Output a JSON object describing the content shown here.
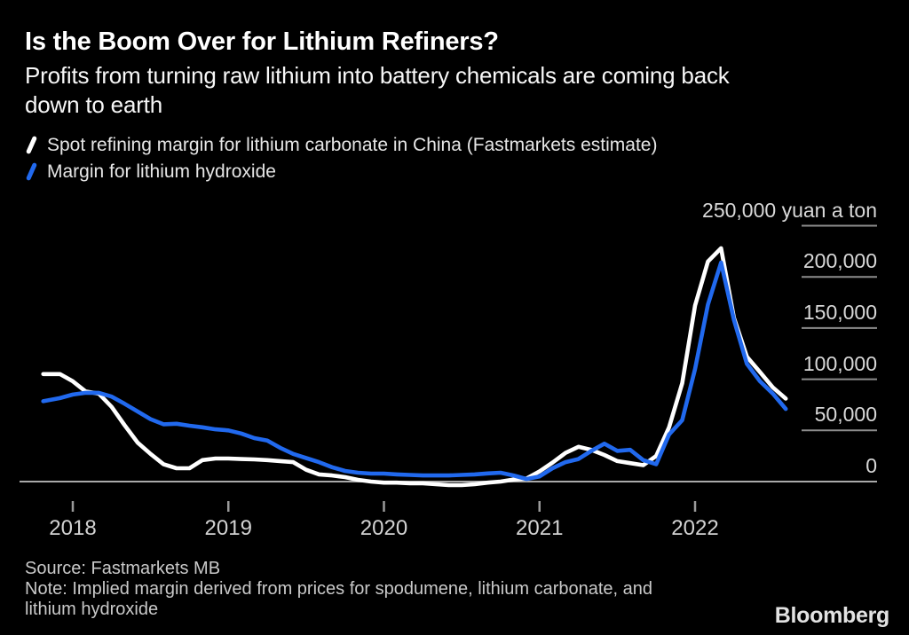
{
  "header": {
    "title": "Is the Boom Over for Lithium Refiners?",
    "subtitle_lines": [
      "Profits from turning raw lithium into battery chemicals are coming back",
      "down to earth"
    ]
  },
  "legend": {
    "items": [
      {
        "key": "carbonate",
        "label": "Spot refining margin for lithium carbonate in China (Fastmarkets estimate)",
        "color": "#ffffff"
      },
      {
        "key": "hydroxide",
        "label": "Margin for lithium hydroxide",
        "color": "#2169ee"
      }
    ]
  },
  "footer": {
    "source": "Source: Fastmarkets MB",
    "note_lines": [
      "Note: Implied margin derived from prices for spodumene, lithium carbonate, and",
      "lithium hydroxide"
    ],
    "brand": "Bloomberg"
  },
  "colors": {
    "background": "#000000",
    "carbonate_line": "#ffffff",
    "hydroxide_line": "#2169ee",
    "gridline": "#8d8d8d",
    "baseline": "#a9a9a9",
    "tick": "#9a9a9a"
  },
  "chart_data": {
    "type": "line",
    "title": "Is the Boom Over for Lithium Refiners?",
    "xlabel": "",
    "ylabel": "yuan a ton",
    "unit_note": "values in yuan per ton; x encoded as decimal years (monthly points)",
    "legend_position": "top-left",
    "grid": "right-side short rules per y tick; full-width rule at zero only",
    "xlim": [
      2017.75,
      2022.72
    ],
    "ylim": [
      -15000,
      265000
    ],
    "x_ticks": [
      {
        "value": 2018,
        "label": "2018"
      },
      {
        "value": 2019,
        "label": "2019"
      },
      {
        "value": 2020,
        "label": "2020"
      },
      {
        "value": 2021,
        "label": "2021"
      },
      {
        "value": 2022,
        "label": "2022"
      }
    ],
    "y_ticks": [
      {
        "value": 0,
        "label": "0"
      },
      {
        "value": 50000,
        "label": "50,000"
      },
      {
        "value": 100000,
        "label": "100,000"
      },
      {
        "value": 150000,
        "label": "150,000"
      },
      {
        "value": 200000,
        "label": "200,000"
      },
      {
        "value": 250000,
        "label": "250,000 yuan a ton"
      }
    ],
    "series": [
      {
        "key": "carbonate",
        "name": "Spot refining margin for lithium carbonate in China (Fastmarkets estimate)",
        "color": "#ffffff",
        "points": [
          [
            2017.81,
            105000
          ],
          [
            2017.917,
            105000
          ],
          [
            2018.0,
            98000
          ],
          [
            2018.083,
            88000
          ],
          [
            2018.167,
            86000
          ],
          [
            2018.25,
            73000
          ],
          [
            2018.333,
            55000
          ],
          [
            2018.417,
            38000
          ],
          [
            2018.5,
            27000
          ],
          [
            2018.583,
            17000
          ],
          [
            2018.667,
            13000
          ],
          [
            2018.75,
            13000
          ],
          [
            2018.833,
            21000
          ],
          [
            2018.917,
            22500
          ],
          [
            2019.0,
            22500
          ],
          [
            2019.083,
            22000
          ],
          [
            2019.167,
            21700
          ],
          [
            2019.25,
            21000
          ],
          [
            2019.333,
            20000
          ],
          [
            2019.417,
            19000
          ],
          [
            2019.5,
            11500
          ],
          [
            2019.583,
            7000
          ],
          [
            2019.667,
            6000
          ],
          [
            2019.75,
            4300
          ],
          [
            2019.833,
            1700
          ],
          [
            2019.917,
            0
          ],
          [
            2020.0,
            -1000
          ],
          [
            2020.083,
            -1000
          ],
          [
            2020.167,
            -1700
          ],
          [
            2020.25,
            -1700
          ],
          [
            2020.333,
            -2600
          ],
          [
            2020.417,
            -3500
          ],
          [
            2020.5,
            -3500
          ],
          [
            2020.583,
            -2600
          ],
          [
            2020.667,
            -1000
          ],
          [
            2020.75,
            0
          ],
          [
            2020.833,
            2000
          ],
          [
            2020.917,
            3000
          ],
          [
            2021.0,
            10000
          ],
          [
            2021.083,
            18500
          ],
          [
            2021.167,
            28000
          ],
          [
            2021.25,
            34000
          ],
          [
            2021.333,
            31000
          ],
          [
            2021.417,
            26000
          ],
          [
            2021.5,
            20000
          ],
          [
            2021.583,
            18000
          ],
          [
            2021.667,
            16000
          ],
          [
            2021.75,
            25000
          ],
          [
            2021.833,
            53000
          ],
          [
            2021.917,
            96000
          ],
          [
            2022.0,
            172000
          ],
          [
            2022.083,
            215000
          ],
          [
            2022.167,
            228000
          ],
          [
            2022.25,
            160000
          ],
          [
            2022.333,
            122000
          ],
          [
            2022.417,
            107000
          ],
          [
            2022.5,
            92000
          ],
          [
            2022.583,
            81000
          ]
        ]
      },
      {
        "key": "hydroxide",
        "name": "Margin for lithium hydroxide",
        "color": "#2169ee",
        "points": [
          [
            2017.81,
            78500
          ],
          [
            2017.917,
            81500
          ],
          [
            2018.0,
            85000
          ],
          [
            2018.083,
            86700
          ],
          [
            2018.167,
            86700
          ],
          [
            2018.25,
            83000
          ],
          [
            2018.333,
            76000
          ],
          [
            2018.417,
            68500
          ],
          [
            2018.5,
            61000
          ],
          [
            2018.583,
            56000
          ],
          [
            2018.667,
            56500
          ],
          [
            2018.75,
            54600
          ],
          [
            2018.833,
            53000
          ],
          [
            2018.917,
            51000
          ],
          [
            2019.0,
            50000
          ],
          [
            2019.083,
            47000
          ],
          [
            2019.167,
            42500
          ],
          [
            2019.25,
            40000
          ],
          [
            2019.333,
            33000
          ],
          [
            2019.417,
            27000
          ],
          [
            2019.5,
            23000
          ],
          [
            2019.583,
            19000
          ],
          [
            2019.667,
            14000
          ],
          [
            2019.75,
            10400
          ],
          [
            2019.833,
            8700
          ],
          [
            2019.917,
            7800
          ],
          [
            2020.0,
            7800
          ],
          [
            2020.083,
            7000
          ],
          [
            2020.167,
            6500
          ],
          [
            2020.25,
            6000
          ],
          [
            2020.333,
            6000
          ],
          [
            2020.417,
            6000
          ],
          [
            2020.5,
            6500
          ],
          [
            2020.583,
            7000
          ],
          [
            2020.667,
            8000
          ],
          [
            2020.75,
            8700
          ],
          [
            2020.833,
            6000
          ],
          [
            2020.917,
            2500
          ],
          [
            2021.0,
            5000
          ],
          [
            2021.083,
            13000
          ],
          [
            2021.167,
            19000
          ],
          [
            2021.25,
            22000
          ],
          [
            2021.333,
            30000
          ],
          [
            2021.417,
            37000
          ],
          [
            2021.5,
            30000
          ],
          [
            2021.583,
            31000
          ],
          [
            2021.667,
            21000
          ],
          [
            2021.75,
            17000
          ],
          [
            2021.833,
            46000
          ],
          [
            2021.917,
            60000
          ],
          [
            2022.0,
            110000
          ],
          [
            2022.083,
            173000
          ],
          [
            2022.167,
            214000
          ],
          [
            2022.25,
            158000
          ],
          [
            2022.333,
            115000
          ],
          [
            2022.417,
            98000
          ],
          [
            2022.5,
            86000
          ],
          [
            2022.583,
            71000
          ]
        ]
      }
    ]
  }
}
